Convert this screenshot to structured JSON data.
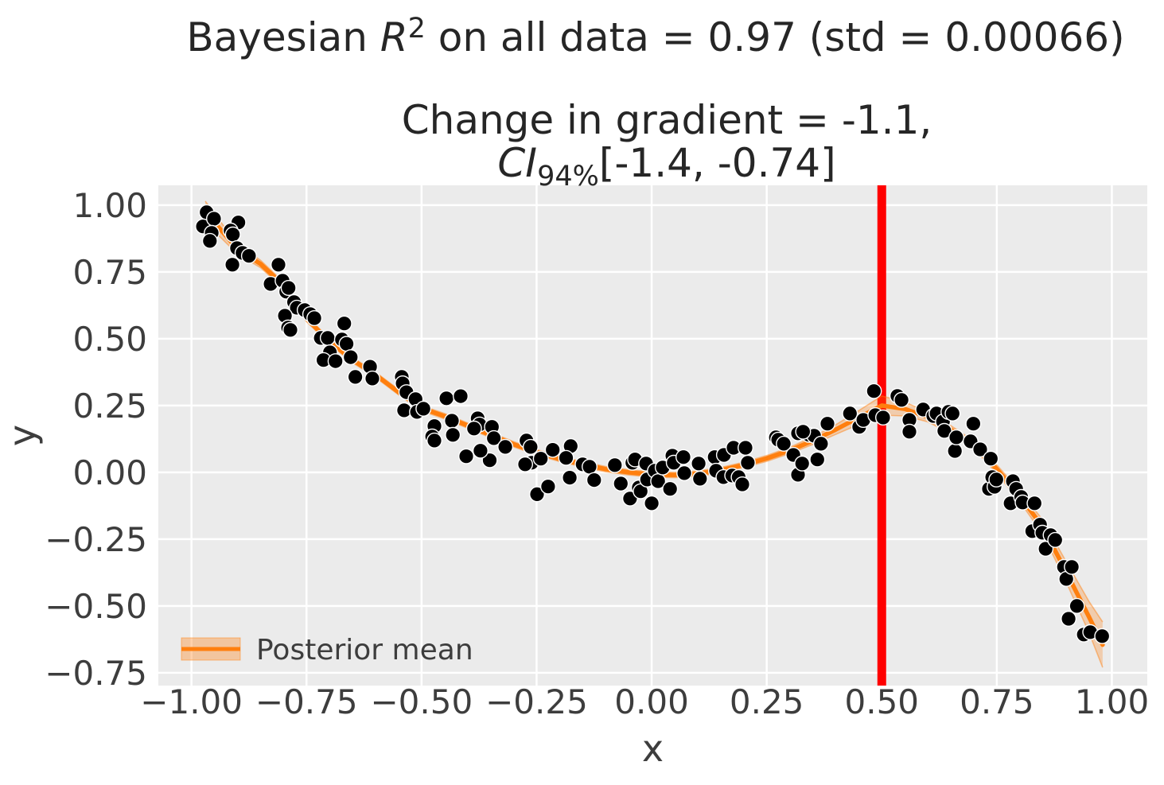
{
  "figure": {
    "title_plain": "Bayesian R² on all data = 0.97 (std = 0.00066)",
    "subtitle_plain": "Change in gradient = -1.1, CI94%[-1.4, -0.74]"
  },
  "chart_data": {
    "type": "scatter",
    "title_parts": [
      {
        "t": "Bayesian "
      },
      {
        "t": "R",
        "italic": true
      },
      {
        "t": "2",
        "sup": true
      },
      {
        "t": " on all data = 0.97 (std = 0.00066)"
      }
    ],
    "subtitle_line1_parts": [
      {
        "t": "Change in gradient = -1.1,"
      }
    ],
    "subtitle_line2_parts": [
      {
        "t": "CI",
        "italic": true
      },
      {
        "t": "94%",
        "sub": true
      },
      {
        "t": "[-1.4, -0.74]"
      }
    ],
    "x_axis": {
      "label": "x",
      "lim": [
        -1.072,
        1.077
      ],
      "ticks": [
        {
          "v": -1.0,
          "label": "−1.00"
        },
        {
          "v": -0.75,
          "label": "−0.75"
        },
        {
          "v": -0.5,
          "label": "−0.50"
        },
        {
          "v": -0.25,
          "label": "−0.25"
        },
        {
          "v": 0.0,
          "label": "0.00"
        },
        {
          "v": 0.25,
          "label": "0.25"
        },
        {
          "v": 0.5,
          "label": "0.50"
        },
        {
          "v": 0.75,
          "label": "0.75"
        },
        {
          "v": 1.0,
          "label": "1.00"
        }
      ]
    },
    "y_axis": {
      "label": "y",
      "lim": [
        -0.798,
        1.074
      ],
      "ticks": [
        {
          "v": 1.0,
          "label": "1.00"
        },
        {
          "v": 0.75,
          "label": "0.75"
        },
        {
          "v": 0.5,
          "label": "0.50"
        },
        {
          "v": 0.25,
          "label": "0.25"
        },
        {
          "v": 0.0,
          "label": "0.00"
        },
        {
          "v": -0.25,
          "label": "−0.25"
        },
        {
          "v": -0.5,
          "label": "−0.50"
        },
        {
          "v": -0.75,
          "label": "−0.75"
        }
      ]
    },
    "legend": {
      "label": "Posterior mean"
    },
    "changepoint": {
      "x": 0.5
    },
    "colors": {
      "plot_bg": "#ebebeb",
      "grid": "#ffffff",
      "scatter": "#000000",
      "scatter_edge": "#ffffff",
      "mean_line": "#ff7f0e",
      "band": "#ff7f0e",
      "changepoint": "#ff0000",
      "title_text": "#262626",
      "tick_text": "#3d3d3d"
    },
    "posterior_mean": [
      [
        -0.97,
        0.975
      ],
      [
        -0.9,
        0.835
      ],
      [
        -0.85,
        0.78
      ],
      [
        -0.8,
        0.7
      ],
      [
        -0.75,
        0.575
      ],
      [
        -0.7,
        0.49
      ],
      [
        -0.65,
        0.42
      ],
      [
        -0.6,
        0.365
      ],
      [
        -0.55,
        0.3
      ],
      [
        -0.5,
        0.24
      ],
      [
        -0.45,
        0.21
      ],
      [
        -0.4,
        0.175
      ],
      [
        -0.35,
        0.14
      ],
      [
        -0.3,
        0.105
      ],
      [
        -0.25,
        0.075
      ],
      [
        -0.2,
        0.05
      ],
      [
        -0.15,
        0.03
      ],
      [
        -0.1,
        0.012
      ],
      [
        -0.05,
        0.0
      ],
      [
        0.0,
        -0.008
      ],
      [
        0.05,
        -0.01
      ],
      [
        0.1,
        -0.005
      ],
      [
        0.15,
        0.008
      ],
      [
        0.2,
        0.028
      ],
      [
        0.25,
        0.052
      ],
      [
        0.3,
        0.082
      ],
      [
        0.35,
        0.118
      ],
      [
        0.4,
        0.16
      ],
      [
        0.45,
        0.205
      ],
      [
        0.5,
        0.25
      ],
      [
        0.55,
        0.237
      ],
      [
        0.6,
        0.207
      ],
      [
        0.65,
        0.16
      ],
      [
        0.7,
        0.103
      ],
      [
        0.75,
        0.012
      ],
      [
        0.8,
        -0.09
      ],
      [
        0.85,
        -0.205
      ],
      [
        0.9,
        -0.37
      ],
      [
        0.95,
        -0.54
      ],
      [
        0.98,
        -0.645
      ]
    ],
    "ci_band": [
      [
        -0.97,
        0.935,
        1.015
      ],
      [
        -0.9,
        0.817,
        0.853
      ],
      [
        -0.85,
        0.766,
        0.794
      ],
      [
        -0.8,
        0.688,
        0.712
      ],
      [
        -0.75,
        0.564,
        0.586
      ],
      [
        -0.7,
        0.48,
        0.5
      ],
      [
        -0.65,
        0.41,
        0.43
      ],
      [
        -0.6,
        0.355,
        0.375
      ],
      [
        -0.55,
        0.29,
        0.31
      ],
      [
        -0.5,
        0.23,
        0.25
      ],
      [
        -0.45,
        0.2,
        0.22
      ],
      [
        -0.4,
        0.165,
        0.185
      ],
      [
        -0.35,
        0.13,
        0.15
      ],
      [
        -0.3,
        0.095,
        0.115
      ],
      [
        -0.25,
        0.065,
        0.085
      ],
      [
        -0.2,
        0.04,
        0.06
      ],
      [
        -0.15,
        0.02,
        0.04
      ],
      [
        -0.1,
        0.002,
        0.022
      ],
      [
        -0.05,
        -0.01,
        0.01
      ],
      [
        0.0,
        -0.018,
        0.002
      ],
      [
        0.05,
        -0.02,
        0.0
      ],
      [
        0.1,
        -0.015,
        0.005
      ],
      [
        0.15,
        -0.002,
        0.018
      ],
      [
        0.2,
        0.018,
        0.038
      ],
      [
        0.25,
        0.041,
        0.063
      ],
      [
        0.3,
        0.07,
        0.094
      ],
      [
        0.35,
        0.104,
        0.132
      ],
      [
        0.4,
        0.142,
        0.178
      ],
      [
        0.45,
        0.179,
        0.231
      ],
      [
        0.5,
        0.214,
        0.286
      ],
      [
        0.55,
        0.211,
        0.263
      ],
      [
        0.6,
        0.189,
        0.225
      ],
      [
        0.65,
        0.145,
        0.175
      ],
      [
        0.7,
        0.089,
        0.117
      ],
      [
        0.75,
        -0.004,
        0.028
      ],
      [
        0.8,
        -0.11,
        -0.07
      ],
      [
        0.85,
        -0.232,
        -0.178
      ],
      [
        0.9,
        -0.408,
        -0.332
      ],
      [
        0.95,
        -0.598,
        -0.482
      ],
      [
        0.98,
        -0.73,
        -0.56
      ]
    ],
    "scatter": [
      [
        -0.967,
        0.973
      ],
      [
        -0.975,
        0.92
      ],
      [
        -0.951,
        0.949
      ],
      [
        -0.956,
        0.896
      ],
      [
        -0.96,
        0.866
      ],
      [
        -0.898,
        0.935
      ],
      [
        -0.915,
        0.905
      ],
      [
        -0.91,
        0.89
      ],
      [
        -0.901,
        0.839
      ],
      [
        -0.889,
        0.821
      ],
      [
        -0.875,
        0.81
      ],
      [
        -0.911,
        0.777
      ],
      [
        -0.811,
        0.777
      ],
      [
        -0.828,
        0.705
      ],
      [
        -0.802,
        0.717
      ],
      [
        -0.794,
        0.676
      ],
      [
        -0.789,
        0.69
      ],
      [
        -0.777,
        0.637
      ],
      [
        -0.771,
        0.616
      ],
      [
        -0.797,
        0.586
      ],
      [
        -0.79,
        0.542
      ],
      [
        -0.785,
        0.533
      ],
      [
        -0.754,
        0.607
      ],
      [
        -0.742,
        0.592
      ],
      [
        -0.733,
        0.577
      ],
      [
        -0.719,
        0.503
      ],
      [
        -0.704,
        0.503
      ],
      [
        -0.668,
        0.557
      ],
      [
        -0.699,
        0.449
      ],
      [
        -0.713,
        0.42
      ],
      [
        -0.673,
        0.497
      ],
      [
        -0.663,
        0.481
      ],
      [
        -0.654,
        0.431
      ],
      [
        -0.687,
        0.416
      ],
      [
        -0.644,
        0.357
      ],
      [
        -0.612,
        0.395
      ],
      [
        -0.607,
        0.351
      ],
      [
        -0.543,
        0.357
      ],
      [
        -0.541,
        0.333
      ],
      [
        -0.533,
        0.3
      ],
      [
        -0.513,
        0.274
      ],
      [
        -0.538,
        0.232
      ],
      [
        -0.51,
        0.226
      ],
      [
        -0.496,
        0.238
      ],
      [
        -0.446,
        0.277
      ],
      [
        -0.415,
        0.285
      ],
      [
        -0.378,
        0.202
      ],
      [
        -0.374,
        0.179
      ],
      [
        -0.472,
        0.173
      ],
      [
        -0.477,
        0.134
      ],
      [
        -0.472,
        0.119
      ],
      [
        -0.434,
        0.193
      ],
      [
        -0.432,
        0.14
      ],
      [
        -0.386,
        0.164
      ],
      [
        -0.347,
        0.17
      ],
      [
        -0.343,
        0.128
      ],
      [
        -0.352,
        0.045
      ],
      [
        -0.403,
        0.06
      ],
      [
        -0.372,
        0.081
      ],
      [
        -0.318,
        0.095
      ],
      [
        -0.272,
        0.119
      ],
      [
        -0.263,
        0.095
      ],
      [
        -0.261,
        0.036
      ],
      [
        -0.275,
        0.03
      ],
      [
        -0.241,
        0.051
      ],
      [
        -0.215,
        0.084
      ],
      [
        -0.176,
        0.098
      ],
      [
        -0.186,
        0.054
      ],
      [
        -0.178,
        -0.02
      ],
      [
        -0.15,
        0.03
      ],
      [
        -0.135,
        0.021
      ],
      [
        -0.125,
        -0.029
      ],
      [
        -0.249,
        -0.082
      ],
      [
        -0.225,
        -0.053
      ],
      [
        -0.08,
        0.027
      ],
      [
        -0.067,
        -0.042
      ],
      [
        -0.047,
        -0.098
      ],
      [
        -0.042,
        0.036
      ],
      [
        -0.036,
        0.048
      ],
      [
        -0.028,
        -0.057
      ],
      [
        -0.024,
        -0.071
      ],
      [
        -0.012,
        0.033
      ],
      [
        -0.01,
        -0.027
      ],
      [
        0.0,
        -0.116
      ],
      [
        0.007,
        0.006
      ],
      [
        0.014,
        -0.033
      ],
      [
        0.024,
        0.018
      ],
      [
        0.045,
        0.062
      ],
      [
        0.048,
        0.036
      ],
      [
        0.04,
        -0.062
      ],
      [
        0.069,
        0.057
      ],
      [
        0.071,
        -0.003
      ],
      [
        0.102,
        0.033
      ],
      [
        0.105,
        -0.024
      ],
      [
        0.137,
        0.057
      ],
      [
        0.14,
        0.006
      ],
      [
        0.157,
        0.065
      ],
      [
        0.156,
        -0.018
      ],
      [
        0.178,
        0.092
      ],
      [
        0.175,
        -0.012
      ],
      [
        0.189,
        -0.018
      ],
      [
        0.204,
        0.092
      ],
      [
        0.197,
        -0.045
      ],
      [
        0.209,
        0.036
      ],
      [
        0.27,
        0.131
      ],
      [
        0.275,
        0.122
      ],
      [
        0.287,
        0.107
      ],
      [
        0.308,
        0.065
      ],
      [
        0.318,
        -0.009
      ],
      [
        0.327,
        0.033
      ],
      [
        0.342,
        0.14
      ],
      [
        0.353,
        0.137
      ],
      [
        0.36,
        0.048
      ],
      [
        0.368,
        0.107
      ],
      [
        0.318,
        0.146
      ],
      [
        0.329,
        0.152
      ],
      [
        0.382,
        0.182
      ],
      [
        0.431,
        0.22
      ],
      [
        0.451,
        0.17
      ],
      [
        0.46,
        0.196
      ],
      [
        0.483,
        0.304
      ],
      [
        0.486,
        0.214
      ],
      [
        0.503,
        0.205
      ],
      [
        0.534,
        0.286
      ],
      [
        0.543,
        0.271
      ],
      [
        0.56,
        0.196
      ],
      [
        0.56,
        0.152
      ],
      [
        0.59,
        0.235
      ],
      [
        0.612,
        0.211
      ],
      [
        0.619,
        0.22
      ],
      [
        0.633,
        0.19
      ],
      [
        0.636,
        0.155
      ],
      [
        0.645,
        0.226
      ],
      [
        0.654,
        0.22
      ],
      [
        0.659,
        0.08
      ],
      [
        0.662,
        0.131
      ],
      [
        0.693,
        0.116
      ],
      [
        0.699,
        0.182
      ],
      [
        0.714,
        0.086
      ],
      [
        0.733,
        -0.062
      ],
      [
        0.737,
        0.051
      ],
      [
        0.74,
        -0.018
      ],
      [
        0.745,
        -0.054
      ],
      [
        0.749,
        -0.027
      ],
      [
        0.78,
        -0.116
      ],
      [
        0.785,
        -0.033
      ],
      [
        0.792,
        -0.062
      ],
      [
        0.803,
        -0.092
      ],
      [
        0.806,
        -0.113
      ],
      [
        0.827,
        -0.22
      ],
      [
        0.832,
        -0.116
      ],
      [
        0.844,
        -0.196
      ],
      [
        0.849,
        -0.226
      ],
      [
        0.856,
        -0.286
      ],
      [
        0.867,
        -0.235
      ],
      [
        0.877,
        -0.253
      ],
      [
        0.896,
        -0.354
      ],
      [
        0.901,
        -0.399
      ],
      [
        0.906,
        -0.548
      ],
      [
        0.913,
        -0.354
      ],
      [
        0.924,
        -0.5
      ],
      [
        0.939,
        -0.607
      ],
      [
        0.953,
        -0.598
      ],
      [
        0.979,
        -0.613
      ]
    ]
  }
}
